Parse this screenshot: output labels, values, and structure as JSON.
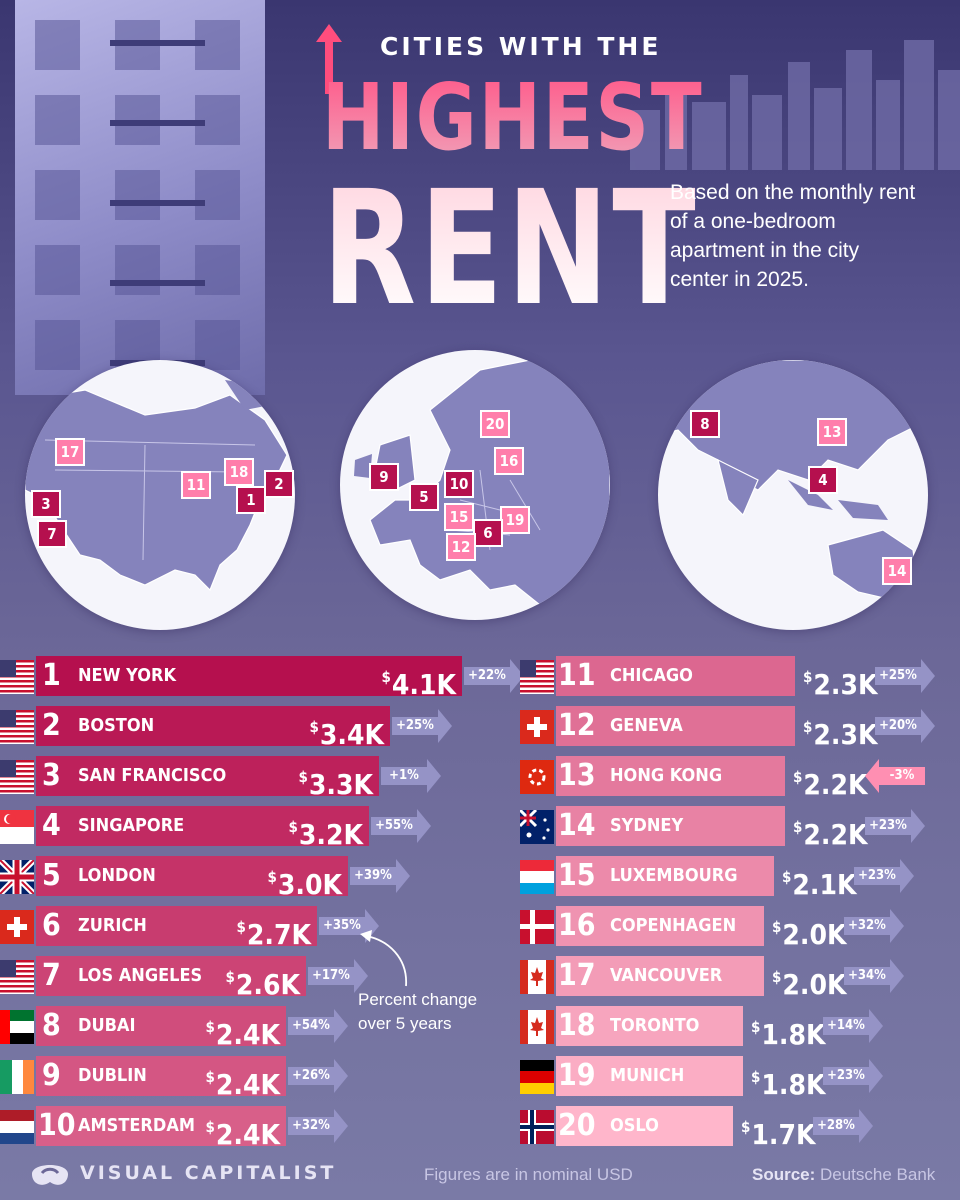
{
  "title": {
    "line1": "CITIES WITH THE",
    "line2": "HIGHEST",
    "line3": "RENT"
  },
  "subtitle": "Based on the monthly rent of a one-bedroom apartment in the city center in 2025.",
  "annotation": "Percent change over 5 years",
  "footer": {
    "brand": "VISUAL CAPITALIST",
    "note": "Figures are in nominal USD",
    "source_label": "Source:",
    "source": "Deutsche Bank"
  },
  "colors": {
    "bar_top": "#b5104e",
    "bar_bottom": "#ffb6cb",
    "change_arrow": "#9593c6",
    "negative_arrow": "#ff8fb2",
    "globe": "#f5f5fb",
    "land": "#8583bc"
  },
  "globes": [
    {
      "region": "north-america",
      "markers": [
        "17",
        "11",
        "18",
        "2",
        "1",
        "3",
        "7"
      ]
    },
    {
      "region": "europe",
      "markers": [
        "20",
        "16",
        "9",
        "10",
        "5",
        "15",
        "19",
        "6",
        "12"
      ]
    },
    {
      "region": "asia-oceania",
      "markers": [
        "8",
        "13",
        "4",
        "14"
      ]
    }
  ],
  "chart_data": {
    "type": "bar",
    "title": "CITIES WITH THE HIGHEST RENT",
    "unit": "USD per month",
    "rows": [
      {
        "rank": "1",
        "city": "NEW YORK",
        "country": "us",
        "value": 4.1,
        "label": "4.1K",
        "change": "+22%"
      },
      {
        "rank": "2",
        "city": "BOSTON",
        "country": "us",
        "value": 3.4,
        "label": "3.4K",
        "change": "+25%"
      },
      {
        "rank": "3",
        "city": "SAN FRANCISCO",
        "country": "us",
        "value": 3.3,
        "label": "3.3K",
        "change": "+1%"
      },
      {
        "rank": "4",
        "city": "SINGAPORE",
        "country": "sg",
        "value": 3.2,
        "label": "3.2K",
        "change": "+55%"
      },
      {
        "rank": "5",
        "city": "LONDON",
        "country": "uk",
        "value": 3.0,
        "label": "3.0K",
        "change": "+39%"
      },
      {
        "rank": "6",
        "city": "ZURICH",
        "country": "ch",
        "value": 2.7,
        "label": "2.7K",
        "change": "+35%"
      },
      {
        "rank": "7",
        "city": "LOS ANGELES",
        "country": "us",
        "value": 2.6,
        "label": "2.6K",
        "change": "+17%"
      },
      {
        "rank": "8",
        "city": "DUBAI",
        "country": "ae",
        "value": 2.4,
        "label": "2.4K",
        "change": "+54%"
      },
      {
        "rank": "9",
        "city": "DUBLIN",
        "country": "ie",
        "value": 2.4,
        "label": "2.4K",
        "change": "+26%"
      },
      {
        "rank": "10",
        "city": "AMSTERDAM",
        "country": "nl",
        "value": 2.4,
        "label": "2.4K",
        "change": "+32%"
      },
      {
        "rank": "11",
        "city": "CHICAGO",
        "country": "us",
        "value": 2.3,
        "label": "2.3K",
        "change": "+25%"
      },
      {
        "rank": "12",
        "city": "GENEVA",
        "country": "ch",
        "value": 2.3,
        "label": "2.3K",
        "change": "+20%"
      },
      {
        "rank": "13",
        "city": "HONG KONG",
        "country": "hk",
        "value": 2.2,
        "label": "2.2K",
        "change": "-3%"
      },
      {
        "rank": "14",
        "city": "SYDNEY",
        "country": "au",
        "value": 2.2,
        "label": "2.2K",
        "change": "+23%"
      },
      {
        "rank": "15",
        "city": "LUXEMBOURG",
        "country": "lu",
        "value": 2.1,
        "label": "2.1K",
        "change": "+23%"
      },
      {
        "rank": "16",
        "city": "COPENHAGEN",
        "country": "dk",
        "value": 2.0,
        "label": "2.0K",
        "change": "+32%"
      },
      {
        "rank": "17",
        "city": "VANCOUVER",
        "country": "ca",
        "value": 2.0,
        "label": "2.0K",
        "change": "+34%"
      },
      {
        "rank": "18",
        "city": "TORONTO",
        "country": "ca",
        "value": 1.8,
        "label": "1.8K",
        "change": "+14%"
      },
      {
        "rank": "19",
        "city": "MUNICH",
        "country": "de",
        "value": 1.8,
        "label": "1.8K",
        "change": "+23%"
      },
      {
        "rank": "20",
        "city": "OSLO",
        "country": "no",
        "value": 1.7,
        "label": "1.7K",
        "change": "+28%"
      }
    ]
  }
}
